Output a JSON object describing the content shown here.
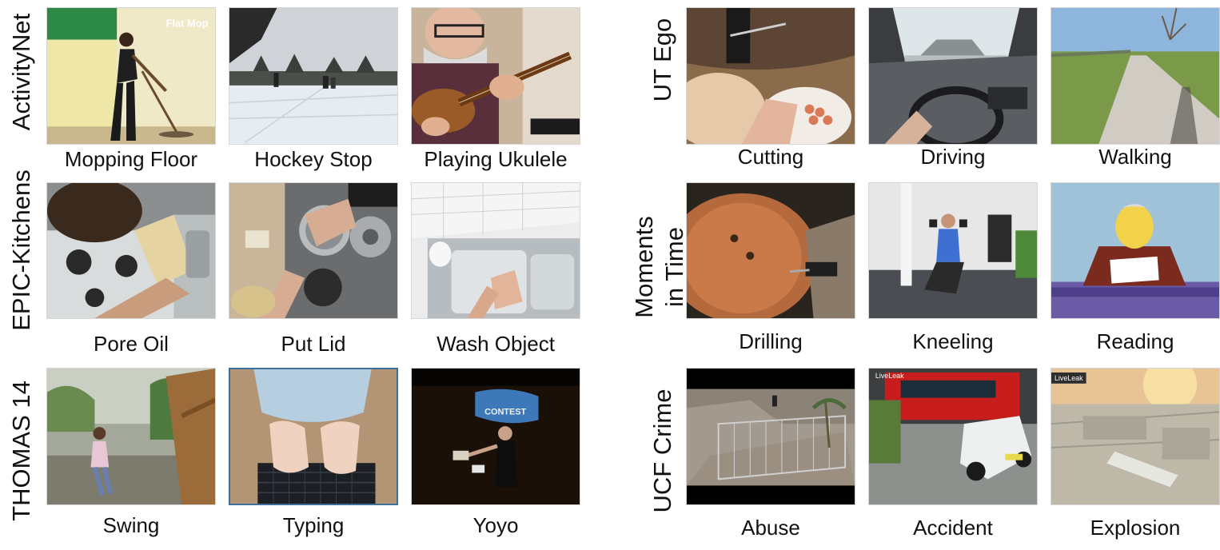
{
  "left_panel": {
    "rows": [
      {
        "dataset": "ActivityNet",
        "clips": [
          {
            "label": "Mopping Floor",
            "scene": "indoor-mopping",
            "overlay_text": "Flat Mop"
          },
          {
            "label": "Hockey Stop",
            "scene": "frozen-lake"
          },
          {
            "label": "Playing Ukulele",
            "scene": "ukulele-player"
          }
        ]
      },
      {
        "dataset": "EPIC-Kitchens",
        "clips": [
          {
            "label": "Pore Oil",
            "scene": "stovetop-pan"
          },
          {
            "label": "Put Lid",
            "scene": "stovetop-pots"
          },
          {
            "label": "Wash Object",
            "scene": "kitchen-sink"
          }
        ]
      },
      {
        "dataset": "THOMAS 14",
        "clips": [
          {
            "label": "Swing",
            "scene": "child-on-swing"
          },
          {
            "label": "Typing",
            "scene": "keyboard-typing"
          },
          {
            "label": "Yoyo",
            "scene": "yoyo-stage",
            "overlay_text": "CONTEST"
          }
        ]
      }
    ]
  },
  "right_panel": {
    "rows": [
      {
        "dataset": "UT Ego",
        "clips": [
          {
            "label": "Cutting",
            "scene": "cutting-board"
          },
          {
            "label": "Driving",
            "scene": "car-dashboard"
          },
          {
            "label": "Walking",
            "scene": "footpath"
          }
        ]
      },
      {
        "dataset_lines": [
          "Moments",
          "in Time"
        ],
        "clips": [
          {
            "label": "Drilling",
            "scene": "pumpkin-drill"
          },
          {
            "label": "Kneeling",
            "scene": "gym-lunge"
          },
          {
            "label": "Reading",
            "scene": "cartoon-anchor"
          }
        ]
      },
      {
        "dataset": "UCF Crime",
        "clips": [
          {
            "label": "Abuse",
            "scene": "cctv-yard"
          },
          {
            "label": "Accident",
            "scene": "bus-crash",
            "overlay_text": "LiveLeak"
          },
          {
            "label": "Explosion",
            "scene": "industrial-site",
            "overlay_text": "LiveLeak"
          }
        ]
      }
    ]
  },
  "colors": {
    "text": "#111111",
    "thumb_border": "#d6d6d6"
  }
}
